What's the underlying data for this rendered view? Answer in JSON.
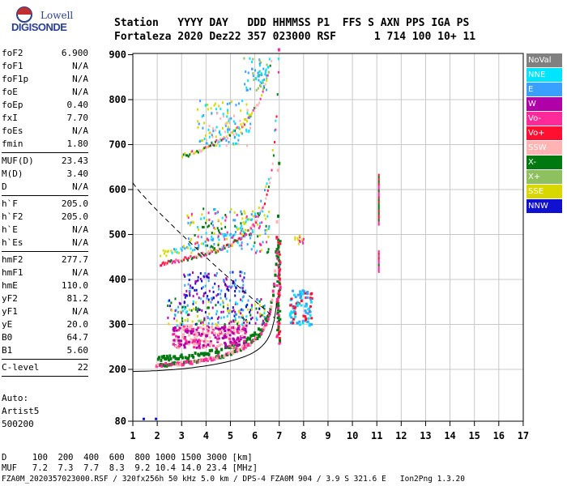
{
  "logo": {
    "line1": "Lowell",
    "line2": "DIGISONDE"
  },
  "header": {
    "labels": "Station   YYYY DAY   DDD HHMMSS P1  FFS S AXN PPS IGA PS",
    "values": "Fortaleza 2020 Dez22 357 023000 RSF      1 714 100 10+ 11"
  },
  "params": {
    "group1": [
      {
        "k": "foF2",
        "v": "6.900"
      },
      {
        "k": "foF1",
        "v": "N/A"
      },
      {
        "k": "foF1p",
        "v": "N/A"
      },
      {
        "k": "foE",
        "v": "N/A"
      },
      {
        "k": "foEp",
        "v": "0.40"
      },
      {
        "k": "fxI",
        "v": "7.70"
      },
      {
        "k": "foEs",
        "v": "N/A"
      },
      {
        "k": "fmin",
        "v": "1.80"
      }
    ],
    "group2": [
      {
        "k": "MUF(D)",
        "v": "23.43"
      },
      {
        "k": "M(D)",
        "v": "3.40"
      },
      {
        "k": "D",
        "v": "N/A"
      }
    ],
    "group3": [
      {
        "k": "h`F",
        "v": "205.0"
      },
      {
        "k": "h`F2",
        "v": "205.0"
      },
      {
        "k": "h`E",
        "v": "N/A"
      },
      {
        "k": "h`Es",
        "v": "N/A"
      }
    ],
    "group4": [
      {
        "k": "hmF2",
        "v": "277.7"
      },
      {
        "k": "hmF1",
        "v": "N/A"
      },
      {
        "k": "hmE",
        "v": "110.0"
      },
      {
        "k": "yF2",
        "v": "81.2"
      },
      {
        "k": "yF1",
        "v": "N/A"
      },
      {
        "k": "yE",
        "v": "20.0"
      },
      {
        "k": "B0",
        "v": "64.7"
      },
      {
        "k": "B1",
        "v": "5.60"
      }
    ],
    "group5": [
      {
        "k": "C-level",
        "v": "22"
      }
    ]
  },
  "auto": {
    "line1": "Auto:",
    "line2": "Artist5",
    "line3": "500200"
  },
  "legend": [
    {
      "label": "NoVal",
      "color": "#808080"
    },
    {
      "label": "NNE",
      "color": "#00e5ff"
    },
    {
      "label": "E",
      "color": "#3aa0ff"
    },
    {
      "label": "W",
      "color": "#b000a8"
    },
    {
      "label": "Vo-",
      "color": "#ff2a9a"
    },
    {
      "label": "Vo+",
      "color": "#ff1030"
    },
    {
      "label": "SSW",
      "color": "#ffb3b3"
    },
    {
      "label": "X-",
      "color": "#007a10"
    },
    {
      "label": "X+",
      "color": "#8fc060"
    },
    {
      "label": "SSE",
      "color": "#d8d800"
    },
    {
      "label": "NNW",
      "color": "#1010d0"
    }
  ],
  "axes": {
    "x_ticks": [
      "1",
      "2",
      "3",
      "4",
      "5",
      "6",
      "7",
      "8",
      "9",
      "10",
      "11",
      "12",
      "13",
      "14",
      "15",
      "16",
      "17"
    ],
    "y_ticks": [
      "80",
      "200",
      "300",
      "400",
      "500",
      "600",
      "700",
      "800",
      "900"
    ]
  },
  "footer": {
    "line1": "D     100  200  400  600  800 1000 1500 3000 [km]",
    "line2": "MUF   7.2  7.3  7.7  8.3  9.2 10.4 14.0 23.4 [MHz]",
    "line3": "FZA0M_2020357023000.RSF / 320fx256h 50 kHz 5.0 km / DPS-4 FZA0M 904 / 3.9 S 321.6 E   Ion2Png 1.3.20"
  }
}
